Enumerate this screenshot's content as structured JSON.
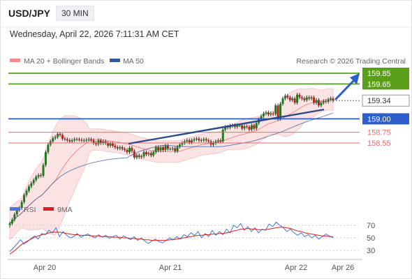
{
  "header": {
    "symbol": "USD/JPY",
    "timeframe": "30 MIN",
    "timestamp": "Wednesday, April 22, 2026 7:11:31 AM CET",
    "credit": "Research © 2026 Trading Central"
  },
  "chart_data": [
    {
      "type": "candlestick",
      "legend": [
        {
          "name": "MA 20 + Bollinger Bands",
          "color": "#f48a8a"
        },
        {
          "name": "MA 50",
          "color": "#2c5a9c"
        }
      ],
      "ylim": [
        156.35,
        159.95
      ],
      "grid": false,
      "legend_position": "top-left",
      "x_ticks": [
        "Apr 20",
        "Apr 21",
        "Apr 22",
        "Apr 26"
      ],
      "close_series": [
        157.05,
        157.12,
        157.22,
        157.3,
        157.34,
        157.45,
        157.58,
        157.66,
        157.74,
        157.8,
        157.86,
        157.92,
        157.95,
        157.94,
        158.14,
        158.38,
        158.52,
        158.58,
        158.64,
        158.66,
        158.72,
        158.7,
        158.63,
        158.62,
        158.6,
        158.58,
        158.6,
        158.62,
        158.62,
        158.61,
        158.6,
        158.6,
        158.61,
        158.62,
        158.6,
        158.55,
        158.53,
        158.6,
        158.55,
        158.58,
        158.55,
        158.5,
        158.54,
        158.5,
        158.47,
        158.45,
        158.47,
        158.44,
        158.42,
        158.38,
        158.46,
        158.4,
        158.28,
        158.32,
        158.29,
        158.3,
        158.38,
        158.34,
        158.36,
        158.32,
        158.38,
        158.47,
        158.41,
        158.47,
        158.42,
        158.5,
        158.44,
        158.44,
        158.45,
        158.4,
        158.48,
        158.52,
        158.55,
        158.58,
        158.6,
        158.56,
        158.6,
        158.62,
        158.63,
        158.6,
        158.6,
        158.62,
        158.6,
        158.58,
        158.52,
        158.55,
        158.58,
        158.6,
        158.58,
        158.8,
        158.85,
        158.84,
        158.87,
        158.88,
        158.85,
        158.88,
        158.88,
        158.82,
        158.86,
        158.85,
        158.8,
        158.88,
        158.82,
        158.92,
        158.99,
        159.05,
        159.1,
        159.12,
        159.08,
        159.1,
        159.09,
        159.25,
        159.0,
        159.28,
        159.38,
        159.43,
        159.4,
        159.35,
        159.38,
        159.3,
        159.45,
        159.4,
        159.38,
        159.35,
        159.4,
        159.38,
        159.4,
        159.3,
        159.35,
        159.25,
        159.3,
        159.33,
        159.32,
        159.36,
        159.38,
        159.34
      ],
      "levels": [
        {
          "value": 159.85,
          "label": "159.85",
          "color": "#5a9e1a",
          "style": "resistance",
          "tag": "filled"
        },
        {
          "value": 159.65,
          "label": "159.65",
          "color": "#5a9e1a",
          "style": "resistance",
          "tag": "filled"
        },
        {
          "value": 159.34,
          "label": "159.34",
          "color": "#555555",
          "style": "last-price",
          "tag": "boxed"
        },
        {
          "value": 159.0,
          "label": "159.00",
          "color": "#2c5ecc",
          "style": "pivot",
          "tag": "filled"
        },
        {
          "value": 158.75,
          "label": "158.75",
          "color": "#ea6b6b",
          "style": "support",
          "tag": "text"
        },
        {
          "value": 158.55,
          "label": "158.55",
          "color": "#ea6b6b",
          "style": "support",
          "tag": "text"
        }
      ]
    },
    {
      "type": "line",
      "legend": [
        {
          "name": "RSI",
          "color": "#4a78d6"
        },
        {
          "name": "9MA",
          "color": "#d92020"
        }
      ],
      "y_ticks": [
        70,
        50,
        30
      ],
      "ylim": [
        10,
        80
      ],
      "x_ticks": [
        "Apr 20",
        "Apr 21",
        "Apr 22",
        "Apr 26"
      ],
      "series": [
        {
          "name": "RSI",
          "values": [
            28,
            34,
            40,
            47,
            40,
            44,
            49,
            53,
            48,
            57,
            55,
            62,
            58,
            66,
            52,
            60,
            54,
            50,
            52,
            57,
            51,
            54,
            56,
            53,
            50,
            55,
            51,
            54,
            49,
            52,
            54,
            48,
            53,
            50,
            47,
            52,
            46,
            50,
            45,
            41,
            45,
            48,
            44,
            42,
            46,
            50,
            47,
            52,
            48,
            55,
            52,
            58,
            54,
            60,
            50,
            57,
            52,
            62,
            54,
            60,
            55,
            64,
            58,
            70,
            66,
            73,
            62,
            68,
            60,
            66,
            58,
            64,
            62,
            72,
            68,
            75,
            70,
            66,
            60,
            64,
            58,
            54,
            58,
            52,
            55,
            50,
            54,
            48,
            52,
            56,
            53,
            50
          ]
        },
        {
          "name": "9MA",
          "values": [
            24,
            28,
            33,
            38,
            42,
            45,
            48,
            51,
            53,
            55,
            56,
            58,
            59,
            59,
            59,
            58,
            57,
            56,
            55,
            55,
            54,
            54,
            54,
            53,
            53,
            53,
            52,
            52,
            52,
            51,
            51,
            51,
            50,
            50,
            49,
            49,
            48,
            48,
            47,
            47,
            46,
            46,
            46,
            46,
            46,
            47,
            47,
            48,
            49,
            50,
            51,
            52,
            53,
            54,
            54,
            55,
            55,
            56,
            56,
            57,
            57,
            58,
            59,
            61,
            62,
            64,
            64,
            65,
            64,
            64,
            63,
            63,
            63,
            64,
            65,
            66,
            67,
            67,
            66,
            65,
            63,
            61,
            60,
            58,
            57,
            56,
            55,
            54,
            53,
            53,
            52,
            52
          ]
        }
      ]
    }
  ]
}
